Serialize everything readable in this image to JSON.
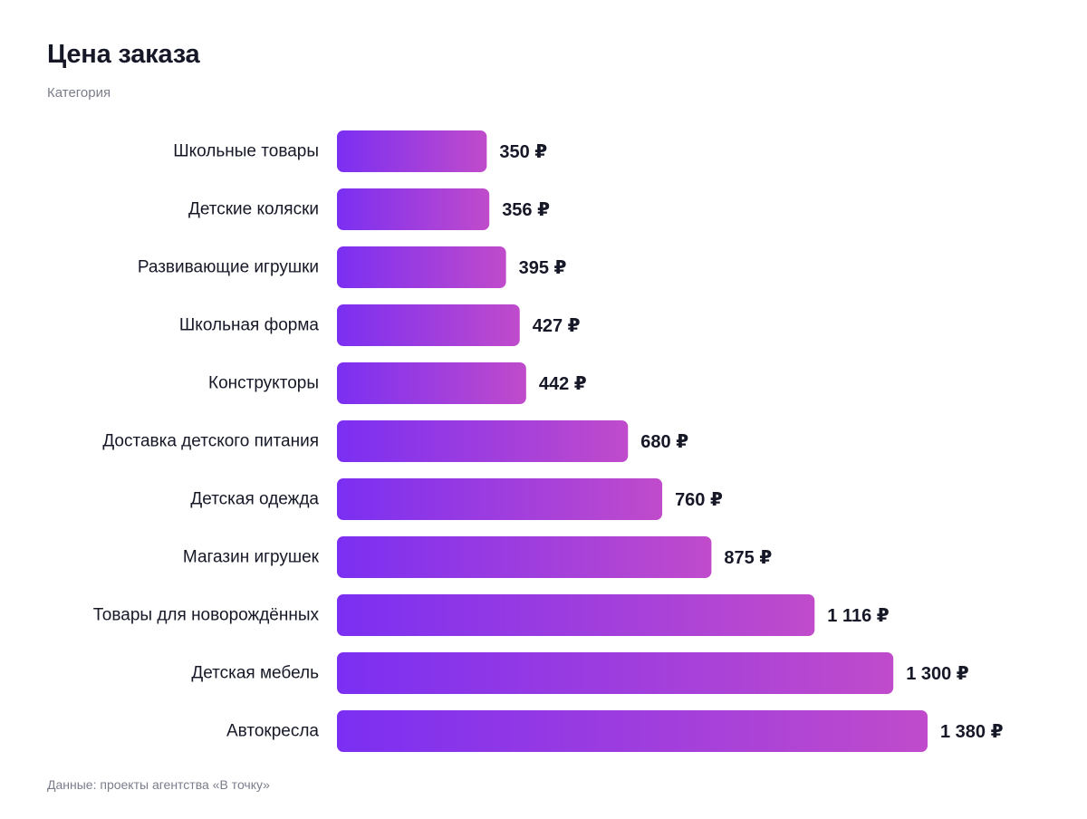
{
  "chart_data": {
    "type": "bar",
    "orientation": "horizontal",
    "title": "Цена заказа",
    "subtitle": "Категория",
    "source": "Данные: проекты агентства «В точку»",
    "categories": [
      "Школьные товары",
      "Детские коляски",
      "Развивающие игрушки",
      "Школьная форма",
      "Конструкторы",
      "Доставка детского питания",
      "Детская одежда",
      "Магазин игрушек",
      "Товары для новорождённых",
      "Детская мебель",
      "Автокресла"
    ],
    "values": [
      350,
      356,
      395,
      427,
      442,
      680,
      760,
      875,
      1116,
      1300,
      1380
    ],
    "value_labels": [
      "350 ₽",
      "356 ₽",
      "395 ₽",
      "427 ₽",
      "442 ₽",
      "680 ₽",
      "760 ₽",
      "875 ₽",
      "1 116 ₽",
      "1 300 ₽",
      "1 380 ₽"
    ],
    "unit": "₽",
    "xlim": [
      0,
      1380
    ],
    "grid": false,
    "legend": "none",
    "colors": {
      "bar_start": "#7b2ff2",
      "bar_end": "#c04bcb"
    }
  }
}
